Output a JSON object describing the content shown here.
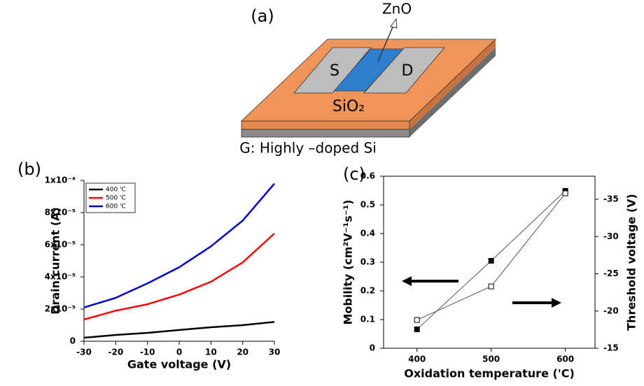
{
  "diagram": {
    "label": "(a)",
    "zno": "ZnO",
    "source": "S",
    "drain": "D",
    "dielectric": "SiO₂",
    "gate": "G: Highly –doped Si"
  },
  "chart_data": [
    {
      "type": "line",
      "label": "(b)",
      "xlabel": "Gate voltage (V)",
      "ylabel": "Drain current (A)",
      "x": [
        -30,
        -20,
        -10,
        0,
        10,
        20,
        30
      ],
      "xlim": [
        -30,
        30
      ],
      "xticks": [
        -30,
        -20,
        -10,
        0,
        10,
        20,
        30
      ],
      "ylim": [
        0,
        0.0001
      ],
      "yticks": [
        0,
        {
          "value": 2e-05,
          "label": "2x10⁻⁵"
        },
        {
          "value": 4e-05,
          "label": "4x10⁻⁵"
        },
        {
          "value": 6e-05,
          "label": "6x10⁻⁵"
        },
        {
          "value": 8e-05,
          "label": "8x10⁻⁵"
        },
        {
          "value": 0.0001,
          "label": "1x10⁻⁴"
        }
      ],
      "legend": "upper left",
      "series": [
        {
          "name": "400 'C",
          "color": "#000000",
          "values": [
            2.2e-06,
            3.9e-06,
            5.2e-06,
            7e-06,
            8.7e-06,
            1e-05,
            1.2e-05
          ]
        },
        {
          "name": "500 'C",
          "color": "#ff0000",
          "values": [
            1.35e-05,
            1.9e-05,
            2.3e-05,
            2.9e-05,
            3.7e-05,
            4.9e-05,
            6.7e-05
          ]
        },
        {
          "name": "600 'C",
          "color": "#0000cc",
          "values": [
            2.1e-05,
            2.7e-05,
            3.6e-05,
            4.6e-05,
            5.9e-05,
            7.5e-05,
            9.8e-05
          ]
        }
      ]
    },
    {
      "type": "line",
      "label": "(c)",
      "xlabel": "Oxidation temperature ('C)",
      "ylabel": "Mobility (cm²V⁻¹s⁻¹)",
      "y2label": "Threshold voltage (V)",
      "x": [
        400,
        500,
        600
      ],
      "xlim": [
        355,
        640
      ],
      "xticks": [
        400,
        500,
        600
      ],
      "ylim": [
        0,
        0.6
      ],
      "yticks": [
        0,
        0.1,
        0.2,
        0.3,
        0.4,
        0.5,
        0.6
      ],
      "y2lim": [
        -15,
        -38.1
      ],
      "y2ticks": [
        -35,
        -30,
        -25,
        -20,
        -15
      ],
      "series": [
        {
          "color": "#000000",
          "markers": "filled",
          "values": [
            0.066,
            0.305,
            0.549
          ]
        },
        {
          "color": "#000000",
          "markers": "open",
          "axis": "y2",
          "values": [
            -18.8,
            -23.3,
            -35.8
          ]
        }
      ]
    }
  ]
}
